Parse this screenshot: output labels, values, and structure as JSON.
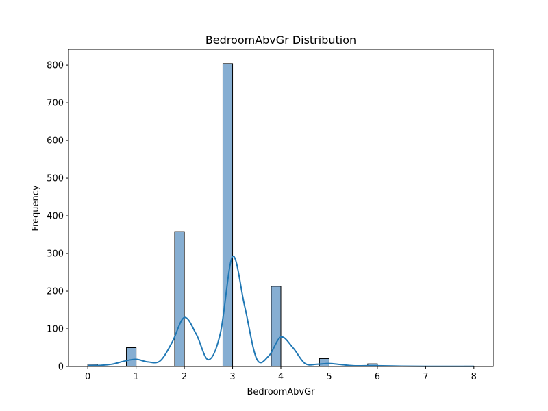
{
  "chart_data": {
    "type": "bar",
    "title": "BedroomAbvGr Distribution",
    "xlabel": "BedroomAbvGr",
    "ylabel": "Frequency",
    "xlim": [
      -0.4,
      8.4
    ],
    "ylim": [
      0,
      842
    ],
    "xticks": [
      0,
      1,
      2,
      3,
      4,
      5,
      6,
      7,
      8
    ],
    "yticks": [
      0,
      100,
      200,
      300,
      400,
      500,
      600,
      700,
      800
    ],
    "bin_width": 0.2,
    "bins": [
      {
        "start": 0.0,
        "value": 6
      },
      {
        "start": 0.8,
        "value": 50
      },
      {
        "start": 1.8,
        "value": 358
      },
      {
        "start": 2.8,
        "value": 804
      },
      {
        "start": 3.8,
        "value": 213
      },
      {
        "start": 4.8,
        "value": 21
      },
      {
        "start": 5.8,
        "value": 7
      },
      {
        "start": 7.8,
        "value": 1
      }
    ],
    "kde": {
      "x": [
        0,
        0.25,
        0.5,
        0.75,
        1.0,
        1.25,
        1.5,
        1.75,
        2.0,
        2.25,
        2.5,
        2.75,
        3.0,
        3.25,
        3.5,
        3.75,
        4.0,
        4.25,
        4.5,
        4.75,
        5.0,
        5.25,
        5.5,
        5.75,
        6.0,
        6.5,
        7.0,
        7.5,
        8.0
      ],
      "y": [
        2,
        3,
        6,
        14,
        19,
        12,
        15,
        65,
        130,
        85,
        18,
        90,
        292,
        160,
        20,
        28,
        78,
        50,
        8,
        6,
        8,
        5,
        2,
        2,
        2,
        1,
        0.5,
        0.5,
        0.5
      ]
    },
    "bar_fill": "#86aed2",
    "bar_edge": "#000000",
    "kde_color": "#1f77b4",
    "grid": false
  }
}
